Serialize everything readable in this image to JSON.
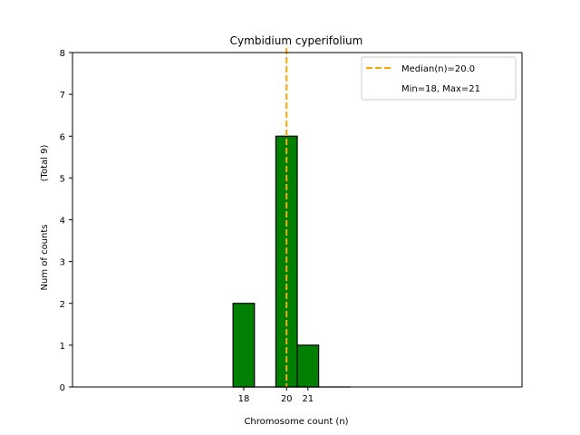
{
  "chart_data": {
    "type": "bar",
    "title": "Cymbidium cyperifolium",
    "xlabel": "Chromosome count (n)",
    "ylabel": "Num of counts",
    "ylabel_secondary": "(Total 9)",
    "x": [
      18,
      20,
      21
    ],
    "values": [
      2,
      6,
      1
    ],
    "xticks": [
      18,
      20,
      21
    ],
    "yticks": [
      0,
      1,
      2,
      3,
      4,
      5,
      6,
      7,
      8
    ],
    "xlim": [
      10,
      31
    ],
    "ylim": [
      0,
      8
    ],
    "bar_color": "#008000",
    "bar_edge_color": "#000000",
    "median": 20.0,
    "median_color": "#FFA500",
    "legend": {
      "position": "top-right",
      "entries": [
        "Median(n)=20.0",
        "Min=18, Max=21"
      ]
    },
    "grid": false
  }
}
